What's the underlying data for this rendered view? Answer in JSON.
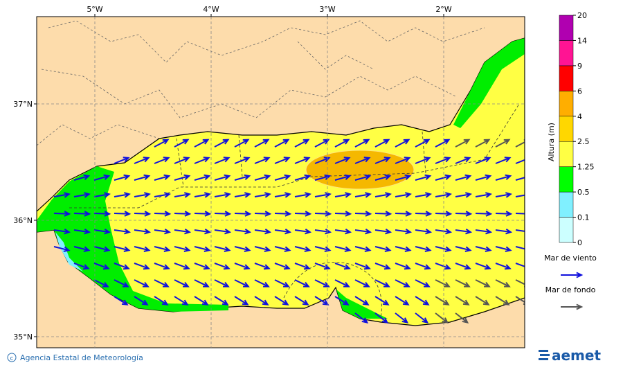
{
  "map": {
    "lon_ticks": [
      "5°W",
      "4°W",
      "3°W",
      "2°W"
    ],
    "lat_ticks": [
      "37°N",
      "36°N",
      "35°N"
    ],
    "colorbar": {
      "title": "Altura (m)",
      "levels": [
        0,
        0.1,
        0.5,
        1.25,
        2.5,
        4,
        6,
        9,
        14,
        20
      ],
      "colors": [
        "#ccffff",
        "#80f0ff",
        "#00ff00",
        "#ffff44",
        "#ffd700",
        "#ffae00",
        "#ff0000",
        "#ff1493",
        "#b000b0"
      ]
    },
    "legend": [
      {
        "label": "Mar de viento",
        "color": "#1010dd"
      },
      {
        "label": "Mar de fondo",
        "color": "#555555"
      }
    ],
    "footer": {
      "credit": "Agencia Estatal de Meteorología",
      "logo": "aemet"
    }
  }
}
